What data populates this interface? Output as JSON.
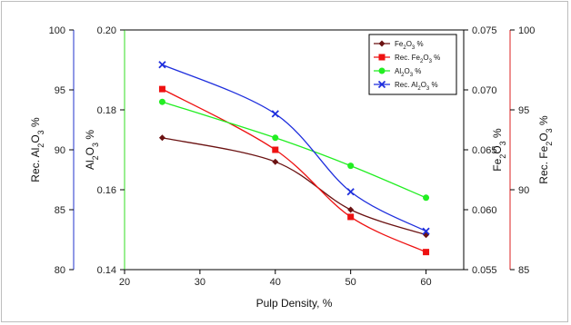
{
  "chart_data": {
    "type": "line",
    "xlabel": "Pulp Density, %",
    "xlim": [
      20,
      65
    ],
    "xticks": [
      "20",
      "30",
      "40",
      "50",
      "60"
    ],
    "x": [
      25,
      40,
      50,
      60
    ],
    "axes": {
      "rec_al2o3": {
        "label_parts": [
          "Rec. Al",
          "2",
          "O",
          "3",
          " %"
        ],
        "ylim": [
          80,
          100
        ],
        "ticks": [
          "80",
          "85",
          "90",
          "95",
          "100"
        ],
        "color": "#2233cc"
      },
      "al2o3": {
        "label_parts": [
          "Al",
          "2",
          "O",
          "3",
          " %"
        ],
        "ylim": [
          0.14,
          0.2
        ],
        "ticks": [
          "0.14",
          "0.16",
          "0.18",
          "0.20"
        ],
        "color": "#33dd22"
      },
      "fe2o3": {
        "label_parts": [
          "Fe",
          "2",
          "O",
          "3",
          " %"
        ],
        "ylim": [
          0.055,
          0.075
        ],
        "ticks": [
          "0.055",
          "0.060",
          "0.065",
          "0.070",
          "0.075"
        ],
        "color": "#000000"
      },
      "rec_fe2o3": {
        "label_parts": [
          "Rec. Fe",
          "2",
          "O",
          "3",
          " %"
        ],
        "ylim": [
          85,
          100
        ],
        "ticks": [
          "85",
          "90",
          "95",
          "100"
        ],
        "color": "#dd2222"
      }
    },
    "series": [
      {
        "name_parts": [
          "Fe",
          "2",
          "O",
          "3",
          " %"
        ],
        "axis": "fe2o3",
        "values": [
          0.066,
          0.064,
          0.06,
          0.0579
        ],
        "color": "#6b1212",
        "marker": "diamond"
      },
      {
        "name_parts": [
          "Rec. Fe",
          "2",
          "O",
          "3",
          " %"
        ],
        "axis": "rec_fe2o3",
        "values": [
          96.3,
          92.5,
          88.3,
          86.1
        ],
        "color": "#ee1111",
        "marker": "square"
      },
      {
        "name_parts": [
          "Al",
          "2",
          "O",
          "3",
          " %"
        ],
        "axis": "al2o3",
        "values": [
          0.182,
          0.173,
          0.166,
          0.158
        ],
        "color": "#22ee22",
        "marker": "circle"
      },
      {
        "name_parts": [
          "Rec. Al",
          "2",
          "O",
          "3",
          " %"
        ],
        "axis": "rec_al2o3",
        "values": [
          97.1,
          93.0,
          86.5,
          83.2
        ],
        "color": "#1f2fdd",
        "marker": "x"
      }
    ],
    "legend_position": "top-right",
    "grid": false
  }
}
